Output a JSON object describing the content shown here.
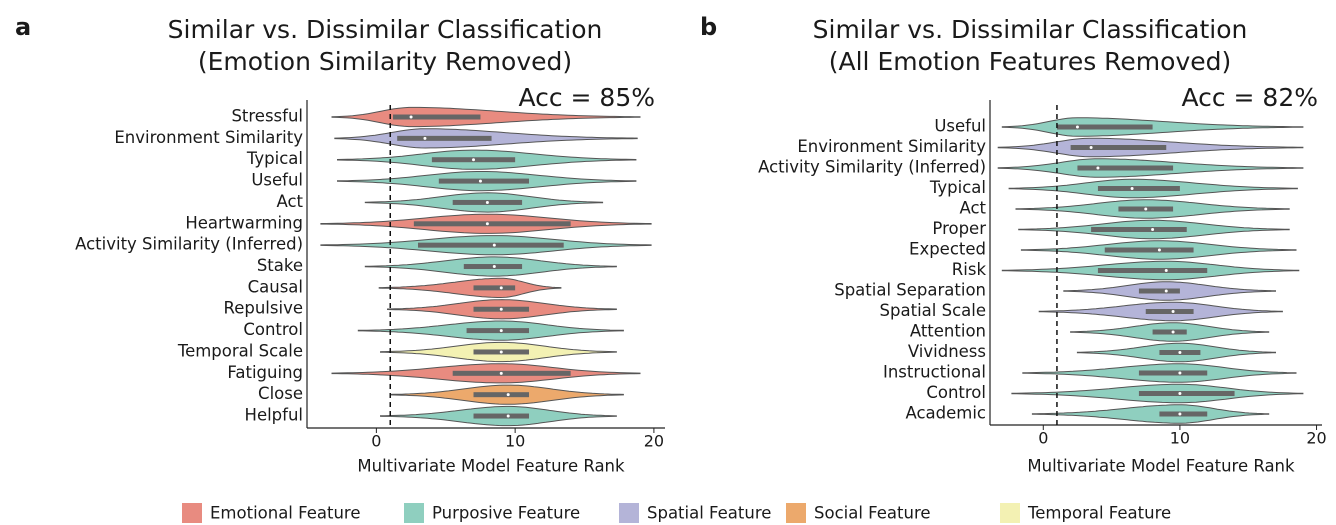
{
  "chart_data": [
    {
      "type": "violin",
      "panel": "a",
      "title": "Similar vs. Dissimilar Classification",
      "subtitle": "(Emotion Similarity Removed)",
      "annotation": "Acc = 85%",
      "xlabel": "Multivariate Model Feature Rank",
      "categories": [
        "Stressful",
        "Environment Similarity",
        "Typical",
        "Useful",
        "Act",
        "Heartwarming",
        "Activity Similarity (Inferred)",
        "Stake",
        "Causal",
        "Repulsive",
        "Control",
        "Temporal Scale",
        "Fatiguing",
        "Close",
        "Helpful"
      ],
      "colors": [
        "#e88b80",
        "#b4b4d8",
        "#8fcfbf",
        "#8fcfbf",
        "#8fcfbf",
        "#e88b80",
        "#8fcfbf",
        "#8fcfbf",
        "#e88b80",
        "#e88b80",
        "#8fcfbf",
        "#f3f1b3",
        "#e88b80",
        "#eca96c",
        "#8fcfbf"
      ],
      "min": [
        -3.2,
        -3,
        -2.8,
        -2.8,
        -0.8,
        -4,
        -4,
        -0.8,
        0.2,
        0.8,
        -1.3,
        0.3,
        -3.2,
        1,
        0.3
      ],
      "q1": [
        1.2,
        1.5,
        4,
        4.5,
        5.5,
        2.7,
        3,
        6.3,
        7,
        7,
        6.5,
        7,
        5.5,
        7,
        7
      ],
      "median": [
        2.5,
        3.5,
        7,
        7.5,
        8,
        8,
        8.5,
        8.5,
        9,
        9,
        9,
        9,
        9,
        9.5,
        9.5
      ],
      "q3": [
        7.5,
        8.3,
        10,
        11,
        10.5,
        14,
        13.5,
        10.5,
        10,
        11,
        11,
        11,
        14,
        11,
        11
      ],
      "max": [
        19,
        18.8,
        18.7,
        18.7,
        16.3,
        19.8,
        19.8,
        17.3,
        13.3,
        17.3,
        17.8,
        17.3,
        19,
        17.8,
        17.3
      ],
      "reference_line": 1,
      "xlim": [
        -5,
        20.8
      ],
      "xticks": [
        0,
        10,
        20
      ]
    },
    {
      "type": "violin",
      "panel": "b",
      "title": "Similar vs. Dissimilar Classification",
      "subtitle": "(All Emotion Features Removed)",
      "annotation": "Acc = 82%",
      "xlabel": "Multivariate Model Feature Rank",
      "categories": [
        "Useful",
        "Environment Similarity",
        "Activity Similarity (Inferred)",
        "Typical",
        "Act",
        "Proper",
        "Expected",
        "Risk",
        "Spatial Separation",
        "Spatial Scale",
        "Attention",
        "Vividness",
        "Instructional",
        "Control",
        "Academic"
      ],
      "colors": [
        "#8fcfbf",
        "#b4b4d8",
        "#8fcfbf",
        "#8fcfbf",
        "#8fcfbf",
        "#8fcfbf",
        "#8fcfbf",
        "#8fcfbf",
        "#b4b4d8",
        "#b4b4d8",
        "#8fcfbf",
        "#8fcfbf",
        "#8fcfbf",
        "#8fcfbf",
        "#8fcfbf"
      ],
      "min": [
        -3,
        -3.3,
        -3.3,
        -2.5,
        -2,
        -1.8,
        -1.6,
        -3,
        1.5,
        -0.3,
        2,
        2.5,
        -1.5,
        -2.3,
        -0.8
      ],
      "q1": [
        1,
        2,
        2.5,
        4,
        5.5,
        3.5,
        4.5,
        4,
        7,
        7.5,
        8,
        8.5,
        7,
        7,
        8.5
      ],
      "median": [
        2.5,
        3.5,
        4,
        6.5,
        7.5,
        8,
        8.5,
        9,
        9,
        9.5,
        9.5,
        10,
        10,
        10,
        10
      ],
      "q3": [
        8,
        9,
        9.5,
        10,
        9.5,
        10.5,
        11,
        12,
        10,
        11,
        10.5,
        11.5,
        12,
        14,
        12
      ],
      "max": [
        19,
        19,
        19,
        18.6,
        18,
        18,
        18.5,
        18.7,
        17,
        17.5,
        16.5,
        17,
        18.5,
        19,
        16.5
      ],
      "reference_line": 1,
      "xlim": [
        -3.9,
        20.4
      ],
      "xticks": [
        0,
        10,
        20
      ]
    }
  ],
  "legend": [
    {
      "name": "Emotional Feature",
      "color": "#e88b80"
    },
    {
      "name": "Purposive Feature",
      "color": "#8fcfbf"
    },
    {
      "name": "Spatial Feature",
      "color": "#b4b4d8"
    },
    {
      "name": "Social Feature",
      "color": "#eca96c"
    },
    {
      "name": "Temporal Feature",
      "color": "#f3f1b3"
    }
  ]
}
